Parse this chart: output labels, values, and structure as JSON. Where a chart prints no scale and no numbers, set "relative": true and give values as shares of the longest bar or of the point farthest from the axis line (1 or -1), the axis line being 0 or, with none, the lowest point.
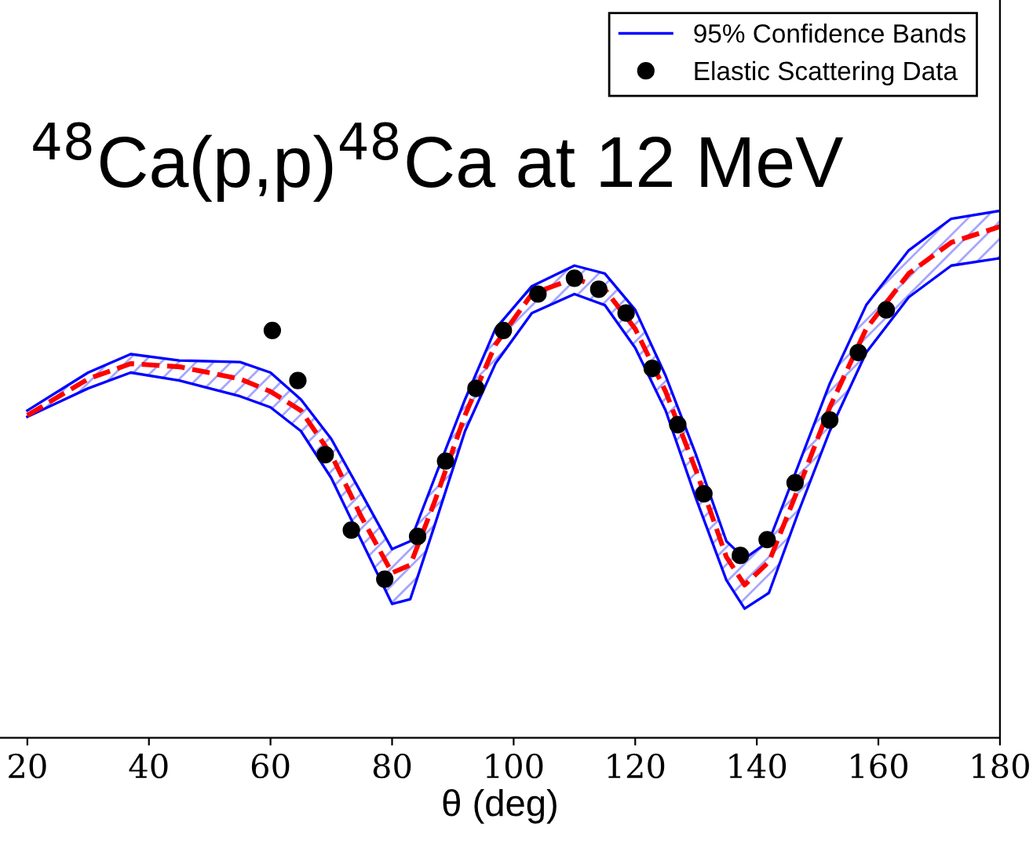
{
  "chart_data": {
    "type": "line",
    "relative": true,
    "title": "$^{48}$Ca(p,p)$^{48}$Ca at 12 MeV",
    "xlabel": "θ (deg)",
    "xlim": [
      15.5,
      180
    ],
    "xticks": [
      20,
      40,
      60,
      80,
      100,
      120,
      140,
      160,
      180
    ],
    "legend": "top right",
    "grid": false,
    "x": [
      20,
      30,
      37,
      45,
      55,
      60,
      65,
      70,
      75,
      80,
      83,
      87,
      92,
      97,
      103,
      110,
      115,
      120,
      125,
      130,
      135,
      138,
      142,
      147,
      152,
      158,
      165,
      172,
      180
    ],
    "series": [
      {
        "line_style": "solid",
        "color": "#0000ff",
        "values": [
          0.609,
          0.663,
          0.693,
          0.678,
          0.648,
          0.627,
          0.582,
          0.493,
          0.373,
          0.254,
          0.263,
          0.403,
          0.582,
          0.71,
          0.806,
          0.842,
          0.821,
          0.74,
          0.621,
          0.454,
          0.299,
          0.245,
          0.275,
          0.433,
          0.582,
          0.731,
          0.836,
          0.896,
          0.91
        ]
      },
      {
        "name": "95% Confidence Bands",
        "line_style": "solid",
        "color": "#0000ff",
        "values": [
          0.621,
          0.693,
          0.728,
          0.716,
          0.713,
          0.693,
          0.642,
          0.567,
          0.463,
          0.358,
          0.373,
          0.493,
          0.642,
          0.776,
          0.857,
          0.896,
          0.881,
          0.812,
          0.687,
          0.537,
          0.373,
          0.34,
          0.373,
          0.522,
          0.672,
          0.821,
          0.925,
          0.985,
          1
        ]
      },
      {
        "type": "line",
        "color": "#ff0000",
        "line_style": "dashed",
        "values": [
          0.612,
          0.681,
          0.71,
          0.704,
          0.681,
          0.657,
          0.621,
          0.537,
          0.418,
          0.313,
          0.328,
          0.448,
          0.612,
          0.746,
          0.842,
          0.872,
          0.851,
          0.776,
          0.657,
          0.507,
          0.343,
          0.29,
          0.334,
          0.478,
          0.627,
          0.776,
          0.881,
          0.94,
          0.97
        ],
        "lower": [
          0.609,
          0.663,
          0.693,
          0.678,
          0.648,
          0.627,
          0.582,
          0.493,
          0.373,
          0.254,
          0.263,
          0.403,
          0.582,
          0.71,
          0.806,
          0.842,
          0.821,
          0.74,
          0.621,
          0.454,
          0.299,
          0.245,
          0.275,
          0.433,
          0.582,
          0.731,
          0.836,
          0.896,
          0.91
        ],
        "upper": [
          0.621,
          0.693,
          0.728,
          0.716,
          0.713,
          0.693,
          0.642,
          0.567,
          0.463,
          0.358,
          0.373,
          0.493,
          0.642,
          0.776,
          0.857,
          0.896,
          0.881,
          0.812,
          0.687,
          0.537,
          0.373,
          0.34,
          0.373,
          0.522,
          0.672,
          0.821,
          0.925,
          0.985,
          1
        ]
      },
      {
        "type": "scatter",
        "name": "Elastic Scattering Data",
        "color": "#000000",
        "marker": "circle",
        "x": [
          60.3,
          64.5,
          69,
          73.3,
          78.8,
          84.2,
          88.8,
          93.8,
          98.3,
          104,
          110,
          114,
          118.5,
          122.8,
          127,
          131.3,
          137.3,
          141.7,
          146.3,
          152,
          156.7,
          161.3
        ],
        "values": [
          0.773,
          0.678,
          0.537,
          0.394,
          0.301,
          0.382,
          0.525,
          0.663,
          0.773,
          0.842,
          0.872,
          0.851,
          0.806,
          0.701,
          0.594,
          0.463,
          0.346,
          0.376,
          0.484,
          0.603,
          0.731,
          0.812
        ]
      }
    ]
  }
}
